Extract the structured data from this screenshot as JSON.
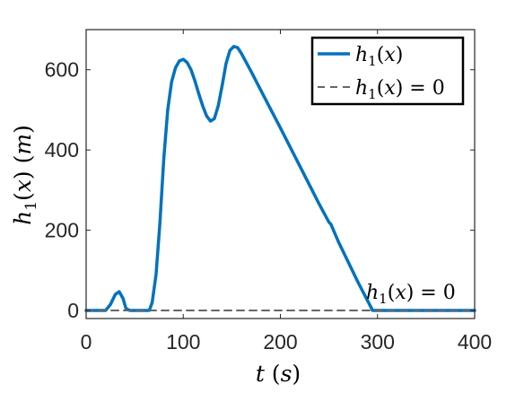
{
  "chart_data": {
    "type": "line",
    "xlabel": "t (s)",
    "ylabel": "h1(x) (m)",
    "xlim": [
      0,
      400
    ],
    "ylim": [
      -20,
      700
    ],
    "x_ticks": [
      0,
      100,
      200,
      300,
      400
    ],
    "y_ticks": [
      0,
      200,
      400,
      600
    ],
    "x_tick_labels": [
      "0",
      "100",
      "200",
      "300",
      "400"
    ],
    "y_tick_labels": [
      "0",
      "200",
      "400",
      "600"
    ],
    "grid": false,
    "legend_position": "top-right",
    "annotation": "h1(x) = 0",
    "series": [
      {
        "name": "h1(x)",
        "color": "#0072BD",
        "style": "solid",
        "x": [
          0,
          20,
          25,
          30,
          34,
          38,
          41,
          45,
          55,
          65,
          68,
          72,
          76,
          80,
          84,
          88,
          92,
          96,
          100,
          104,
          108,
          112,
          116,
          120,
          124,
          128,
          132,
          136,
          140,
          144,
          148,
          152,
          156,
          160,
          170,
          180,
          200,
          220,
          240,
          250,
          252,
          260,
          280,
          295,
          300,
          350,
          400
        ],
        "y": [
          0,
          0,
          15,
          40,
          47,
          30,
          5,
          0,
          0,
          0,
          20,
          90,
          220,
          380,
          500,
          570,
          605,
          622,
          626,
          618,
          600,
          572,
          540,
          510,
          485,
          472,
          478,
          510,
          560,
          615,
          648,
          658,
          655,
          640,
          595,
          548,
          455,
          360,
          265,
          220,
          215,
          170,
          70,
          0,
          0,
          0,
          0
        ]
      },
      {
        "name": "h1(x) = 0",
        "color": "#666666",
        "style": "dashed",
        "x": [
          0,
          400
        ],
        "y": [
          0,
          0
        ]
      }
    ]
  }
}
